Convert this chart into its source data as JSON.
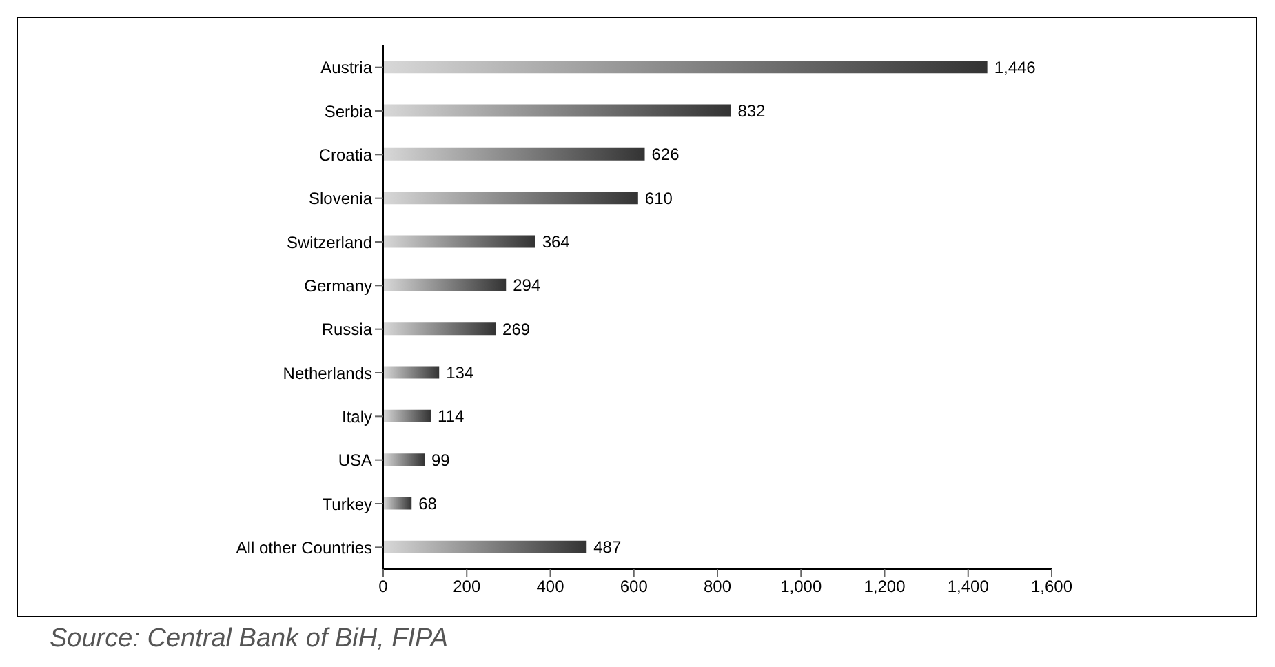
{
  "chart_data": {
    "type": "bar",
    "orientation": "horizontal",
    "categories": [
      "Austria",
      "Serbia",
      "Croatia",
      "Slovenia",
      "Switzerland",
      "Germany",
      "Russia",
      "Netherlands",
      "Italy",
      "USA",
      "Turkey",
      "All other Countries"
    ],
    "values": [
      1446,
      832,
      626,
      610,
      364,
      294,
      269,
      134,
      114,
      99,
      68,
      487
    ],
    "value_labels": [
      "1,446",
      "832",
      "626",
      "610",
      "364",
      "294",
      "269",
      "134",
      "114",
      "99",
      "68",
      "487"
    ],
    "color": "#333333",
    "xlim": [
      0,
      1600
    ],
    "xticks": [
      0,
      200,
      400,
      600,
      800,
      {
        "value": 1000,
        "label": "1,000"
      },
      {
        "value": 1200,
        "label": "1,200"
      },
      {
        "value": 1400,
        "label": "1,400"
      },
      {
        "value": 1600,
        "label": "1,600"
      }
    ],
    "grid": false,
    "legend": false,
    "annotations": [
      "Source: Central Bank of BiH, FIPA"
    ]
  }
}
